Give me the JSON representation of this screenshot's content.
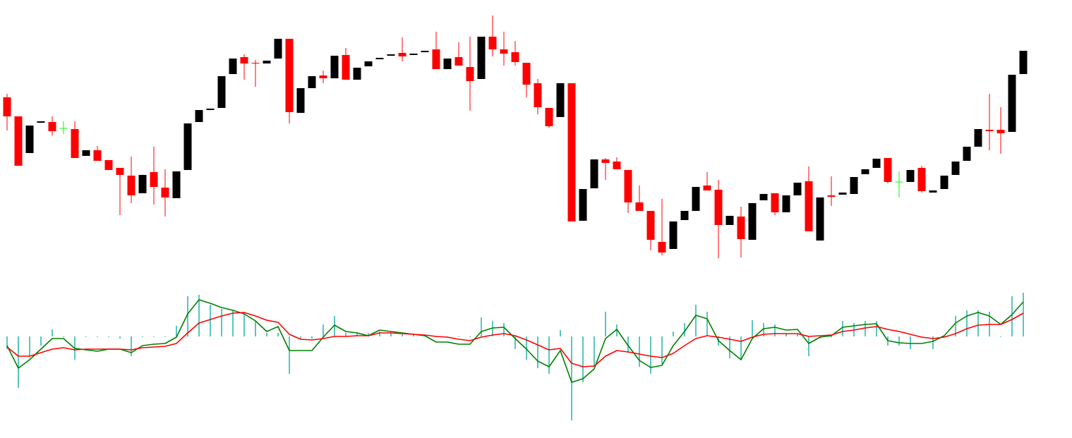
{
  "chart_data": [
    {
      "type": "candlestick",
      "ylim": [
        0,
        400
      ],
      "up_color": "#000000",
      "down_color": "#ff0000",
      "doji_color": "#00ff00",
      "open": [
        262,
        235,
        183,
        226,
        227,
        218,
        217,
        179,
        187,
        173,
        162,
        151,
        126,
        156,
        134,
        119,
        159,
        227,
        244,
        247,
        295,
        319,
        311,
        310,
        317,
        345,
        240,
        275,
        293,
        289,
        322,
        287,
        306,
        316,
        321,
        325,
        322,
        326,
        330,
        302,
        319,
        305,
        288,
        348,
        330,
        326,
        311,
        282,
        247,
        234,
        282,
        87,
        133,
        174,
        171,
        159,
        113,
        101,
        57,
        47,
        88,
        101,
        137,
        131,
        81,
        93,
        60,
        116,
        126,
        99,
        123,
        143,
        59,
        123,
        124,
        125,
        153,
        162,
        176,
        142,
        142,
        162,
        127,
        132,
        152,
        172,
        192,
        216,
        216,
        213,
        295
      ],
      "high": [
        267,
        235,
        222,
        228,
        235,
        228,
        228,
        187,
        193,
        173,
        162,
        178,
        152,
        192,
        160,
        157,
        225,
        244,
        246,
        292,
        317,
        323,
        315,
        314,
        345,
        345,
        275,
        292,
        300,
        321,
        332,
        304,
        313,
        318,
        323,
        347,
        324,
        328,
        355,
        317,
        340,
        348,
        348,
        378,
        355,
        342,
        311,
        288,
        247,
        282,
        282,
        132,
        174,
        176,
        177,
        159,
        137,
        101,
        118,
        86,
        101,
        135,
        156,
        145,
        94,
        107,
        112,
        125,
        126,
        123,
        141,
        164,
        120,
        150,
        127,
        149,
        160,
        175,
        176,
        157,
        159,
        165,
        130,
        151,
        171,
        192,
        217,
        267,
        248,
        294,
        328
      ],
      "low": [
        215,
        165,
        183,
        226,
        208,
        210,
        176,
        179,
        172,
        159,
        95,
        112,
        126,
        110,
        93,
        119,
        159,
        227,
        244,
        247,
        295,
        287,
        277,
        310,
        317,
        225,
        240,
        275,
        282,
        289,
        287,
        287,
        306,
        316,
        321,
        313,
        322,
        326,
        302,
        302,
        307,
        243,
        288,
        320,
        307,
        307,
        262,
        238,
        219,
        234,
        86,
        87,
        133,
        145,
        160,
        98,
        101,
        45,
        38,
        47,
        88,
        101,
        130,
        34,
        81,
        35,
        60,
        116,
        95,
        99,
        123,
        72,
        59,
        108,
        124,
        125,
        153,
        162,
        140,
        120,
        142,
        127,
        127,
        132,
        152,
        172,
        192,
        187,
        182,
        213,
        295
      ],
      "close": [
        235,
        165,
        222,
        228,
        214,
        218,
        176,
        187,
        172,
        159,
        152,
        123,
        152,
        135,
        120,
        157,
        225,
        244,
        246,
        292,
        317,
        310,
        310,
        314,
        345,
        241,
        275,
        292,
        289,
        321,
        287,
        304,
        313,
        318,
        323,
        320,
        324,
        328,
        302,
        317,
        307,
        285,
        348,
        330,
        324,
        312,
        280,
        248,
        221,
        282,
        86,
        132,
        174,
        169,
        160,
        113,
        101,
        60,
        42,
        86,
        101,
        135,
        130,
        81,
        94,
        61,
        112,
        125,
        99,
        123,
        141,
        72,
        120,
        121,
        127,
        149,
        160,
        175,
        142,
        142,
        159,
        129,
        130,
        151,
        171,
        192,
        217,
        214,
        211,
        294,
        328
      ]
    },
    {
      "type": "line",
      "ylim": [
        -144,
        77
      ],
      "series": [
        {
          "style": "histogram",
          "color": "#20b2aa",
          "values": [
            -18,
            -73,
            -28,
            -13,
            10,
            -1,
            -33,
            -1,
            -1,
            -1,
            -3,
            -28,
            -1,
            -1,
            -1,
            15,
            57,
            59,
            45,
            39,
            37,
            32,
            22,
            5,
            5,
            -53,
            -3,
            -3,
            17,
            29,
            5,
            5,
            5,
            7,
            5,
            3,
            3,
            2,
            -1,
            -1,
            -1,
            -1,
            27,
            22,
            19,
            -18,
            -33,
            -45,
            -53,
            9,
            -119,
            -65,
            -43,
            35,
            17,
            -23,
            -43,
            -53,
            -39,
            7,
            19,
            45,
            35,
            -13,
            -31,
            -33,
            23,
            19,
            17,
            5,
            3,
            -28,
            -3,
            -1,
            22,
            19,
            22,
            22,
            -13,
            -13,
            -18,
            -1,
            -18,
            -1,
            29,
            37,
            37,
            35,
            -1,
            57,
            62
          ]
        },
        {
          "style": "line",
          "color": "#008000",
          "values": [
            -13,
            -45,
            -33,
            -18,
            -3,
            -3,
            -17,
            -19,
            -21,
            -18,
            -18,
            -23,
            -13,
            -11,
            -10,
            -1,
            32,
            52,
            47,
            41,
            37,
            32,
            22,
            7,
            14,
            -20,
            -20,
            -20,
            -1,
            16,
            7,
            5,
            1,
            9,
            7,
            5,
            3,
            1,
            -8,
            -8,
            -11,
            -11,
            7,
            12,
            13,
            -3,
            -18,
            -35,
            -43,
            -20,
            -65,
            -60,
            -46,
            -3,
            10,
            -13,
            -34,
            -44,
            -41,
            -13,
            7,
            30,
            25,
            -6,
            -20,
            -33,
            -3,
            11,
            13,
            9,
            10,
            -10,
            -1,
            1,
            13,
            15,
            17,
            18,
            -6,
            -9,
            -10,
            -10,
            -7,
            1,
            19,
            29,
            34,
            29,
            17,
            31,
            49
          ]
        },
        {
          "style": "line",
          "color": "#ff0000",
          "values": [
            -15,
            -28,
            -28,
            -23,
            -18,
            -16,
            -19,
            -18,
            -18,
            -18,
            -18,
            -19,
            -16,
            -15,
            -14,
            -10,
            5,
            19,
            24,
            29,
            33,
            34,
            29,
            23,
            20,
            3,
            -4,
            -5,
            -3,
            0,
            0,
            1,
            1,
            5,
            5,
            4,
            3,
            2,
            0,
            -1,
            -4,
            -6,
            -1,
            2,
            4,
            1,
            -5,
            -12,
            -19,
            -17,
            -38,
            -43,
            -42,
            -28,
            -20,
            -22,
            -25,
            -28,
            -30,
            -24,
            -13,
            -3,
            1,
            -1,
            -4,
            -7,
            -1,
            3,
            4,
            4,
            4,
            0,
            1,
            2,
            7,
            9,
            12,
            14,
            10,
            7,
            3,
            -1,
            -3,
            -1,
            4,
            11,
            16,
            17,
            17,
            24,
            33
          ]
        }
      ]
    }
  ]
}
